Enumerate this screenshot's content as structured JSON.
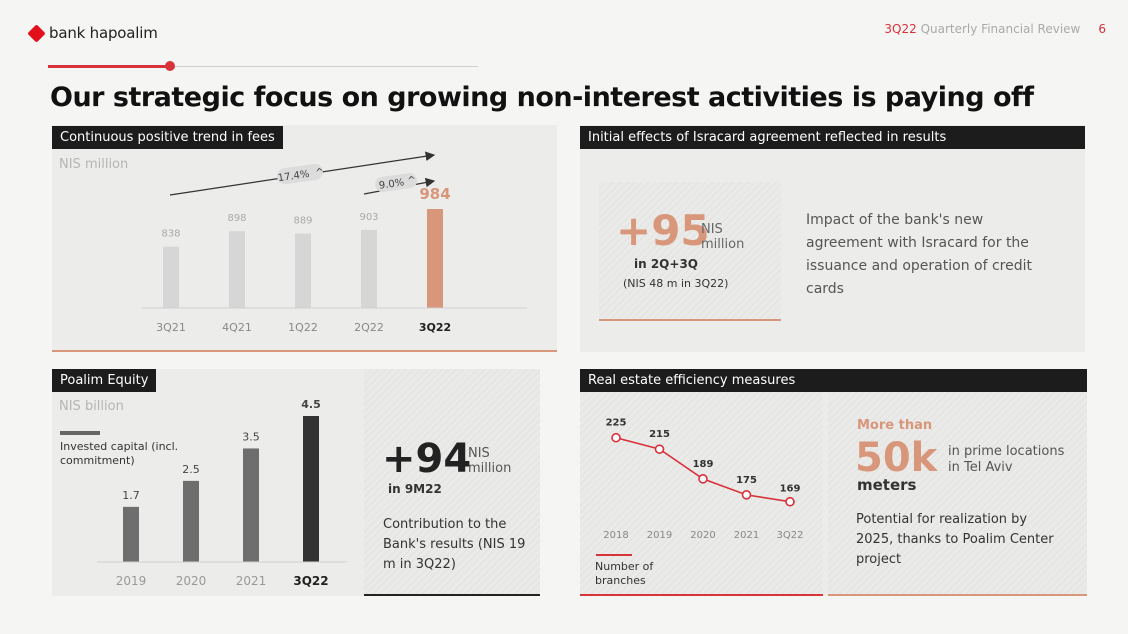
{
  "header": {
    "brand": "bank hapoalim",
    "review_period": "3Q22",
    "review_title": "Quarterly Financial Review",
    "page_number": "6"
  },
  "title": "Our strategic focus on growing non-interest activities is paying off",
  "fees": {
    "title": "Continuous positive trend in fees",
    "unit": "NIS million",
    "growth_1": "17.4%",
    "growth_2": "9.0%"
  },
  "isracard": {
    "title": "Initial effects of Isracard agreement reflected in results",
    "big_value": "+95",
    "unit_line1": "NIS",
    "unit_line2": "million",
    "period": "in 2Q+3Q",
    "note": "(NIS 48 m in 3Q22)",
    "description": "Impact of the bank's new agreement with Isracard for the issuance and operation of credit cards"
  },
  "equity": {
    "title": "Poalim Equity",
    "unit": "NIS billion",
    "legend": "Invested capital (incl. commitment)",
    "big_value": "+94",
    "unit_line1": "NIS",
    "unit_line2": "million",
    "period": "in 9M22",
    "description": "Contribution to the Bank's results (NIS 19 m in 3Q22)"
  },
  "real_estate": {
    "title": "Real estate efficiency measures",
    "legend": "Number of branches",
    "more_than": "More than",
    "big_value": "50k",
    "big_unit": "meters",
    "location": "in prime locations in Tel Aviv",
    "potential": "Potential for realization by 2025, thanks to Poalim Center project"
  },
  "chart_data": [
    {
      "type": "bar",
      "title": "Continuous positive trend in fees",
      "ylabel": "NIS million",
      "categories": [
        "3Q21",
        "4Q21",
        "1Q22",
        "2Q22",
        "3Q22"
      ],
      "values": [
        838,
        898,
        889,
        903,
        984
      ],
      "annotations": [
        "17.4%",
        "9.0%"
      ]
    },
    {
      "type": "bar",
      "title": "Poalim Equity",
      "ylabel": "NIS billion",
      "categories": [
        "2019",
        "2020",
        "2021",
        "3Q22"
      ],
      "values": [
        1.7,
        2.5,
        3.5,
        4.5
      ],
      "legend": [
        "Invested capital (incl. commitment)"
      ]
    },
    {
      "type": "line",
      "title": "Real estate efficiency measures",
      "categories": [
        "2018",
        "2019",
        "2020",
        "2021",
        "3Q22"
      ],
      "values": [
        225,
        215,
        189,
        175,
        169
      ],
      "legend": [
        "Number of branches"
      ]
    }
  ]
}
